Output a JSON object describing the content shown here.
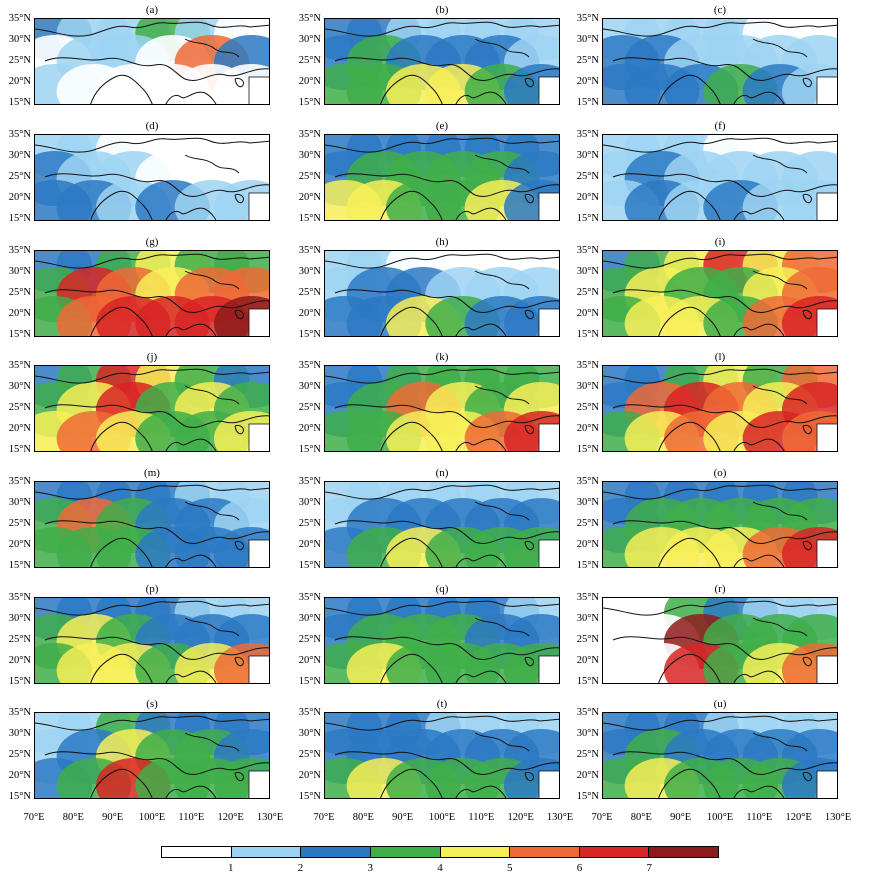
{
  "panels": [
    "(a)",
    "(b)",
    "(c)",
    "(d)",
    "(e)",
    "(f)",
    "(g)",
    "(h)",
    "(i)",
    "(j)",
    "(k)",
    "(l)",
    "(m)",
    "(n)",
    "(o)",
    "(p)",
    "(q)",
    "(r)",
    "(s)",
    "(t)",
    "(u)"
  ],
  "y_ticks": [
    "35°N",
    "30°N",
    "25°N",
    "20°N",
    "15°N"
  ],
  "x_ticks": [
    "70°E",
    "80°E",
    "90°E",
    "100°E",
    "110°E",
    "120°E",
    "130°E"
  ],
  "legend": {
    "colors": [
      "#ffffff",
      "#9dd3f2",
      "#2c79c3",
      "#3fae49",
      "#f7ef57",
      "#ef6a36",
      "#d82525",
      "#8e1b1b"
    ],
    "labels": [
      "1",
      "2",
      "3",
      "4",
      "5",
      "6",
      "7"
    ]
  },
  "panel_levels": [
    [
      2,
      1,
      1,
      3,
      1,
      0,
      0,
      1,
      1,
      0,
      5,
      2,
      1,
      0,
      0,
      0,
      0,
      0
    ],
    [
      2,
      2,
      1,
      1,
      1,
      1,
      2,
      3,
      2,
      2,
      2,
      1,
      3,
      3,
      4,
      4,
      3,
      2
    ],
    [
      1,
      1,
      1,
      1,
      0,
      0,
      2,
      2,
      1,
      1,
      1,
      1,
      2,
      2,
      2,
      3,
      2,
      1
    ],
    [
      1,
      1,
      0,
      0,
      0,
      0,
      2,
      1,
      1,
      0,
      0,
      0,
      2,
      2,
      1,
      2,
      1,
      1
    ],
    [
      2,
      2,
      2,
      2,
      2,
      2,
      2,
      3,
      3,
      3,
      3,
      2,
      4,
      4,
      3,
      3,
      4,
      2
    ],
    [
      1,
      1,
      1,
      0,
      0,
      0,
      1,
      2,
      1,
      1,
      1,
      1,
      1,
      2,
      1,
      2,
      1,
      1
    ],
    [
      2,
      2,
      3,
      4,
      3,
      3,
      3,
      6,
      5,
      4,
      5,
      5,
      3,
      5,
      6,
      6,
      6,
      7
    ],
    [
      1,
      1,
      0,
      0,
      0,
      0,
      1,
      2,
      2,
      1,
      1,
      1,
      2,
      2,
      4,
      3,
      2,
      2
    ],
    [
      2,
      3,
      4,
      6,
      4,
      5,
      3,
      4,
      3,
      3,
      4,
      5,
      3,
      4,
      4,
      3,
      5,
      6
    ],
    [
      2,
      3,
      6,
      4,
      3,
      2,
      3,
      4,
      6,
      3,
      4,
      3,
      4,
      5,
      4,
      3,
      3,
      4
    ],
    [
      2,
      2,
      3,
      3,
      3,
      3,
      2,
      3,
      5,
      4,
      3,
      4,
      3,
      3,
      4,
      4,
      5,
      6
    ],
    [
      2,
      2,
      3,
      4,
      3,
      5,
      2,
      5,
      6,
      5,
      4,
      6,
      3,
      4,
      5,
      4,
      6,
      5
    ],
    [
      2,
      2,
      2,
      2,
      1,
      1,
      3,
      5,
      3,
      2,
      2,
      1,
      3,
      3,
      3,
      2,
      2,
      2
    ],
    [
      1,
      1,
      1,
      1,
      1,
      1,
      1,
      2,
      2,
      2,
      2,
      2,
      2,
      3,
      4,
      3,
      3,
      3
    ],
    [
      2,
      2,
      2,
      2,
      2,
      2,
      2,
      3,
      3,
      3,
      3,
      3,
      3,
      4,
      4,
      4,
      5,
      6
    ],
    [
      2,
      2,
      2,
      2,
      1,
      1,
      3,
      4,
      3,
      2,
      2,
      2,
      3,
      4,
      4,
      3,
      4,
      5
    ],
    [
      2,
      2,
      2,
      2,
      2,
      1,
      2,
      3,
      3,
      3,
      2,
      2,
      3,
      4,
      3,
      3,
      3,
      3
    ],
    [
      0,
      0,
      3,
      2,
      1,
      1,
      0,
      0,
      7,
      3,
      3,
      3,
      0,
      0,
      6,
      3,
      4,
      5
    ],
    [
      1,
      1,
      3,
      2,
      2,
      2,
      1,
      2,
      4,
      3,
      3,
      2,
      2,
      3,
      6,
      3,
      3,
      3
    ],
    [
      2,
      2,
      2,
      1,
      1,
      1,
      2,
      2,
      2,
      2,
      2,
      2,
      3,
      4,
      3,
      3,
      3,
      2
    ],
    [
      2,
      2,
      2,
      1,
      1,
      1,
      2,
      3,
      2,
      2,
      2,
      2,
      3,
      4,
      3,
      3,
      3,
      2
    ]
  ]
}
